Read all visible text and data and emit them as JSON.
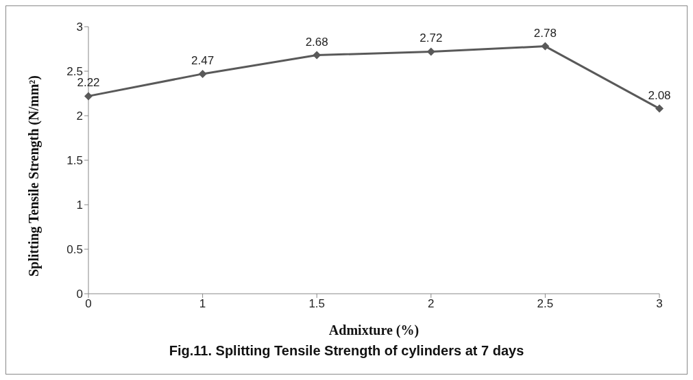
{
  "chart_data": {
    "type": "line",
    "title": "Fig.11. Splitting Tensile  Strength of cylinders at 7 days",
    "xlabel": "Admixture (%)",
    "ylabel": "Splitting Tensile Strength (N/mm²)",
    "categories": [
      "0",
      "1",
      "1.5",
      "2",
      "2.5",
      "3"
    ],
    "series": [
      {
        "color": "#595959",
        "values": [
          2.22,
          2.47,
          2.68,
          2.72,
          2.78,
          2.08
        ]
      }
    ],
    "ylim": [
      0,
      3
    ],
    "yticks": [
      0,
      0.5,
      1,
      1.5,
      2,
      2.5,
      3
    ],
    "marker": "diamond",
    "line_style": "solid",
    "data_labels": true
  }
}
